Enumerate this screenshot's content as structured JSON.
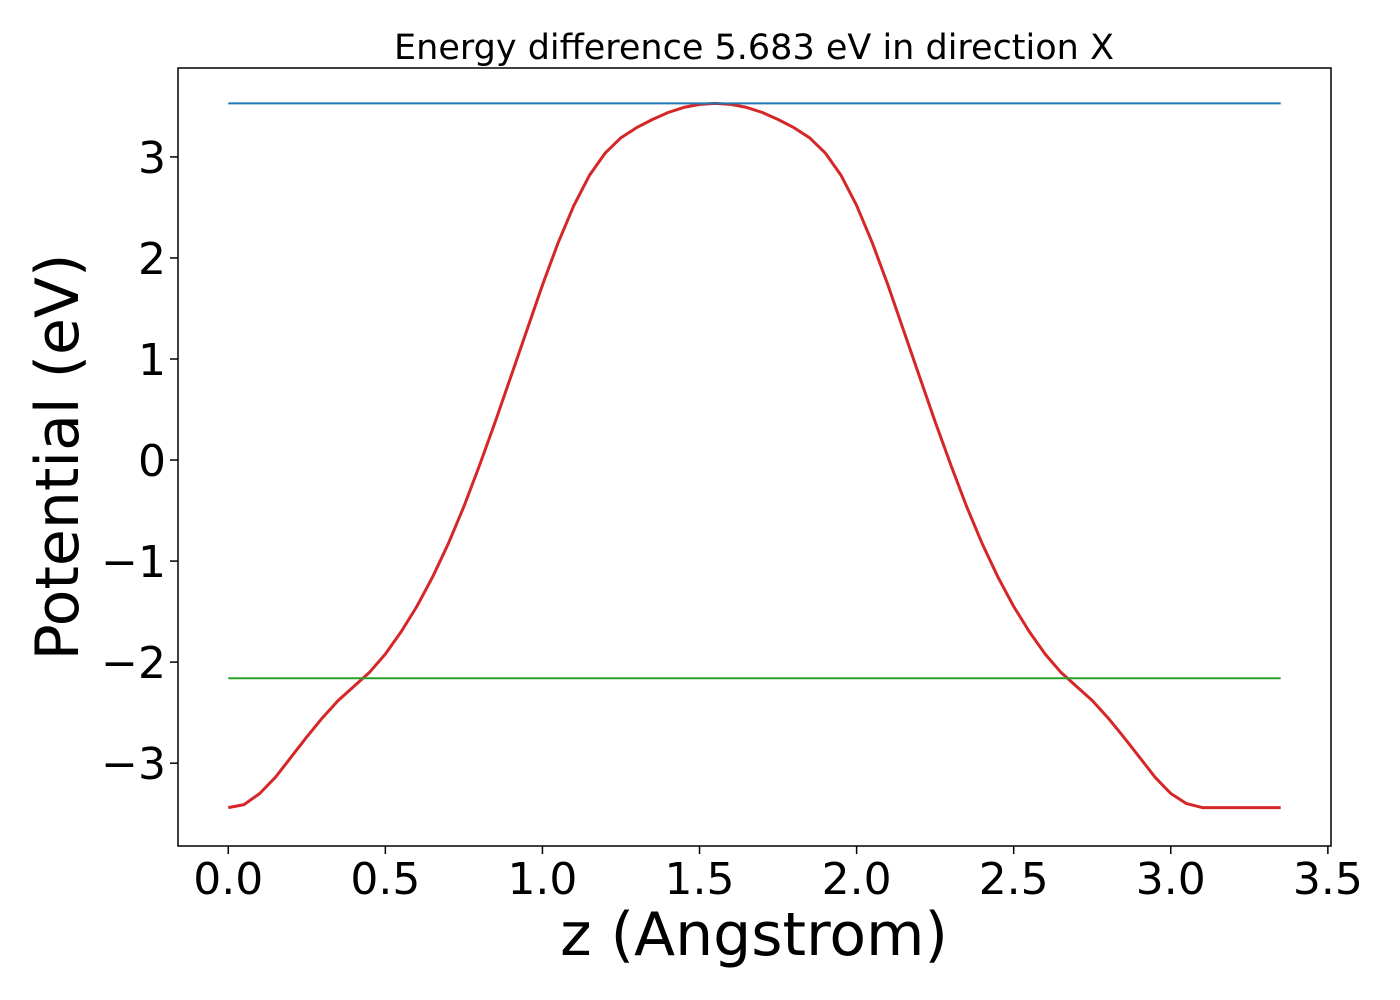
{
  "chart_data": {
    "type": "line",
    "title": "Energy difference 5.683 eV in direction X",
    "xlabel": "z (Angstrom)",
    "ylabel": "Potential (eV)",
    "xlim": [
      -0.16,
      3.51
    ],
    "ylim": [
      -3.82,
      3.88
    ],
    "xticks": [
      0.0,
      0.5,
      1.0,
      1.5,
      2.0,
      2.5,
      3.0,
      3.5
    ],
    "xtick_labels": [
      "0.0",
      "0.5",
      "1.0",
      "1.5",
      "2.0",
      "2.5",
      "3.0",
      "3.5"
    ],
    "yticks": [
      -3,
      -2,
      -1,
      0,
      1,
      2,
      3
    ],
    "ytick_labels": [
      "−3",
      "−2",
      "−1",
      "0",
      "1",
      "2",
      "3"
    ],
    "grid": false,
    "legend": "none",
    "series": [
      {
        "color": "#d62728",
        "x": [
          0.0,
          0.05,
          0.1,
          0.15,
          0.2,
          0.25,
          0.3,
          0.35,
          0.4,
          0.45,
          0.5,
          0.55,
          0.6,
          0.65,
          0.7,
          0.75,
          0.8,
          0.85,
          0.9,
          0.95,
          1.0,
          1.05,
          1.1,
          1.15,
          1.2,
          1.25,
          1.3,
          1.35,
          1.4,
          1.45,
          1.5,
          1.55,
          1.6,
          1.65,
          1.7,
          1.75,
          1.8,
          1.85,
          1.9,
          1.95,
          2.0,
          2.05,
          2.1,
          2.15,
          2.2,
          2.25,
          2.3,
          2.35,
          2.4,
          2.45,
          2.5,
          2.55,
          2.6,
          2.65,
          2.7,
          2.75,
          2.8,
          2.85,
          2.9,
          2.95,
          3.0,
          3.05,
          3.1,
          3.15,
          3.2,
          3.25,
          3.3,
          3.35
        ],
        "y": [
          -3.44,
          -3.41,
          -3.3,
          -3.14,
          -2.94,
          -2.74,
          -2.55,
          -2.38,
          -2.24,
          -2.1,
          -1.92,
          -1.7,
          -1.45,
          -1.16,
          -0.83,
          -0.46,
          -0.05,
          0.38,
          0.83,
          1.28,
          1.73,
          2.15,
          2.52,
          2.82,
          3.04,
          3.19,
          3.29,
          3.37,
          3.44,
          3.49,
          3.52,
          3.53,
          3.52,
          3.49,
          3.44,
          3.37,
          3.29,
          3.19,
          3.04,
          2.82,
          2.52,
          2.15,
          1.73,
          1.28,
          0.83,
          0.38,
          -0.05,
          -0.46,
          -0.83,
          -1.16,
          -1.45,
          -1.7,
          -1.92,
          -2.1,
          -2.24,
          -2.38,
          -2.55,
          -2.74,
          -2.94,
          -3.14,
          -3.3,
          -3.4,
          -3.44,
          -3.44,
          -3.44,
          -3.44,
          -3.44,
          -3.44
        ]
      },
      {
        "color": "#1f77b4",
        "x": [
          0.0,
          3.35
        ],
        "y": [
          3.53,
          3.53
        ]
      },
      {
        "color": "#2ca02c",
        "x": [
          0.0,
          3.35
        ],
        "y": [
          -2.16,
          -2.16
        ]
      }
    ]
  }
}
